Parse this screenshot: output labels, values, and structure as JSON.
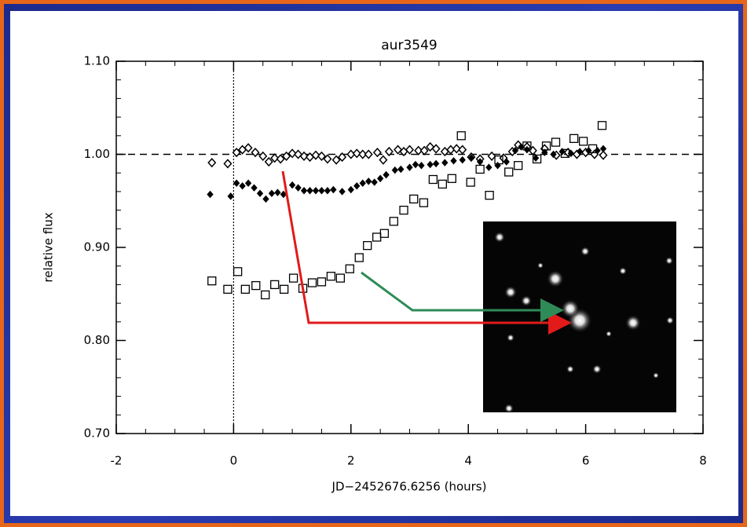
{
  "chart_data": {
    "type": "scatter",
    "title": "aur3549",
    "x_label": "JD−2452676.6256 (hours)",
    "y_label": "relative flux",
    "xlim": [
      -2,
      8
    ],
    "xticks": [
      -2,
      0,
      2,
      4,
      6,
      8
    ],
    "ylim": [
      0.7,
      1.1
    ],
    "yticks": [
      {
        "value": 0.7,
        "label": "0.70"
      },
      {
        "value": 0.8,
        "label": "0.80"
      },
      {
        "value": 0.9,
        "label": "0.90"
      },
      {
        "value": 1.0,
        "label": "1.00"
      },
      {
        "value": 1.1,
        "label": "1.10"
      }
    ],
    "hlines": [
      1.0
    ],
    "vlines": [
      0
    ],
    "series": [
      {
        "marker": "open-diamond",
        "color": "#000000",
        "x": [
          -0.37,
          -0.1,
          0.05,
          0.15,
          0.25,
          0.37,
          0.5,
          0.6,
          0.7,
          0.8,
          0.9,
          1.0,
          1.1,
          1.2,
          1.3,
          1.4,
          1.5,
          1.6,
          1.75,
          1.85,
          2.0,
          2.1,
          2.2,
          2.3,
          2.45,
          2.55,
          2.65,
          2.8,
          2.9,
          3.0,
          3.15,
          3.25,
          3.35,
          3.45,
          3.6,
          3.7,
          3.8,
          3.9,
          4.05,
          4.2,
          4.4,
          4.6,
          4.75,
          4.85,
          5.0,
          5.1,
          5.3,
          5.5,
          5.7,
          5.85,
          6.0,
          6.15,
          6.3
        ],
        "values": [
          0.991,
          0.99,
          1.002,
          1.005,
          1.007,
          1.002,
          0.998,
          0.992,
          0.996,
          0.995,
          0.998,
          1.001,
          1.0,
          0.998,
          0.997,
          0.999,
          0.998,
          0.995,
          0.994,
          0.997,
          1.0,
          1.001,
          1.0,
          1.0,
          1.002,
          0.994,
          1.003,
          1.005,
          1.003,
          1.005,
          1.004,
          1.004,
          1.008,
          1.006,
          1.003,
          1.005,
          1.006,
          1.005,
          0.997,
          0.995,
          0.998,
          0.996,
          1.003,
          1.01,
          1.008,
          1.004,
          1.006,
          0.999,
          1.002,
          1.0,
          1.002,
          1.0,
          0.999
        ]
      },
      {
        "marker": "filled-diamond",
        "color": "#000000",
        "x": [
          -0.4,
          -0.05,
          0.05,
          0.15,
          0.25,
          0.35,
          0.45,
          0.55,
          0.65,
          0.75,
          0.85,
          1.0,
          1.1,
          1.2,
          1.3,
          1.4,
          1.5,
          1.6,
          1.7,
          1.85,
          2.0,
          2.1,
          2.2,
          2.3,
          2.4,
          2.5,
          2.6,
          2.75,
          2.85,
          3.0,
          3.1,
          3.2,
          3.35,
          3.45,
          3.6,
          3.75,
          3.9,
          4.05,
          4.2,
          4.35,
          4.5,
          4.65,
          4.8,
          4.9,
          5.0,
          5.15,
          5.3,
          5.45,
          5.6,
          5.75,
          5.9,
          6.05,
          6.2,
          6.3
        ],
        "values": [
          0.957,
          0.955,
          0.969,
          0.966,
          0.969,
          0.964,
          0.958,
          0.952,
          0.958,
          0.959,
          0.957,
          0.967,
          0.964,
          0.961,
          0.961,
          0.961,
          0.961,
          0.961,
          0.962,
          0.96,
          0.962,
          0.966,
          0.969,
          0.971,
          0.97,
          0.974,
          0.978,
          0.983,
          0.984,
          0.986,
          0.989,
          0.988,
          0.989,
          0.99,
          0.991,
          0.993,
          0.994,
          0.996,
          0.992,
          0.986,
          0.988,
          0.992,
          1.004,
          1.008,
          1.005,
          0.996,
          1.002,
          1.0,
          1.003,
          1.001,
          1.003,
          1.004,
          1.004,
          1.006
        ]
      },
      {
        "marker": "open-square",
        "color": "#000000",
        "x": [
          -0.37,
          -0.1,
          0.07,
          0.2,
          0.38,
          0.54,
          0.7,
          0.86,
          1.02,
          1.18,
          1.34,
          1.5,
          1.66,
          1.82,
          1.98,
          2.14,
          2.28,
          2.44,
          2.57,
          2.73,
          2.9,
          3.07,
          3.24,
          3.4,
          3.56,
          3.72,
          3.88,
          4.04,
          4.2,
          4.36,
          4.52,
          4.69,
          4.85,
          5.0,
          5.17,
          5.33,
          5.49,
          5.65,
          5.8,
          5.96,
          6.12,
          6.28
        ],
        "values": [
          0.864,
          0.855,
          0.874,
          0.855,
          0.859,
          0.849,
          0.86,
          0.855,
          0.867,
          0.856,
          0.862,
          0.863,
          0.869,
          0.867,
          0.877,
          0.889,
          0.902,
          0.911,
          0.915,
          0.928,
          0.94,
          0.952,
          0.948,
          0.973,
          0.968,
          0.974,
          1.02,
          0.97,
          0.984,
          0.956,
          0.994,
          0.981,
          0.988,
          1.009,
          0.995,
          1.009,
          1.013,
          1.001,
          1.017,
          1.014,
          1.006,
          1.031
        ]
      }
    ]
  }
}
